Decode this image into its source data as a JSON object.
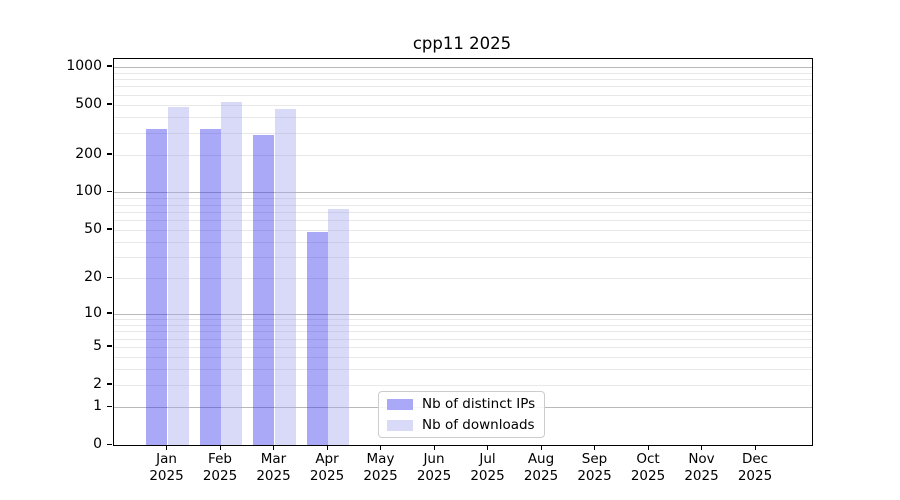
{
  "chart_data": {
    "type": "bar",
    "title": "cpp11 2025",
    "categories": [
      {
        "month": "Jan",
        "year": "2025"
      },
      {
        "month": "Feb",
        "year": "2025"
      },
      {
        "month": "Mar",
        "year": "2025"
      },
      {
        "month": "Apr",
        "year": "2025"
      },
      {
        "month": "May",
        "year": "2025"
      },
      {
        "month": "Jun",
        "year": "2025"
      },
      {
        "month": "Jul",
        "year": "2025"
      },
      {
        "month": "Aug",
        "year": "2025"
      },
      {
        "month": "Sep",
        "year": "2025"
      },
      {
        "month": "Oct",
        "year": "2025"
      },
      {
        "month": "Nov",
        "year": "2025"
      },
      {
        "month": "Dec",
        "year": "2025"
      }
    ],
    "series": [
      {
        "name": "Nb of distinct IPs",
        "color": "#a9a9f7",
        "color_rgba": "rgba(40,40,235,0.4)",
        "values": [
          320,
          322,
          285,
          48,
          null,
          null,
          null,
          null,
          null,
          null,
          null,
          null
        ]
      },
      {
        "name": "Nb of downloads",
        "color": "#d9d9f8",
        "color_rgba": "rgba(160,160,238,0.4)",
        "values": [
          480,
          525,
          465,
          73,
          null,
          null,
          null,
          null,
          null,
          null,
          null,
          null
        ]
      }
    ],
    "y_axis": {
      "scale": "log10(value+1)",
      "tick_labels": [
        "1000",
        "500",
        "200",
        "100",
        "50",
        "20",
        "10",
        "5",
        "2",
        "1",
        "0"
      ],
      "ylim": [
        0,
        1157
      ]
    },
    "x_axis": {
      "tick_style": "month above year, centered under each bar pair"
    },
    "grid": {
      "horizontal": true,
      "vertical": false,
      "major_color": "#b9b9b9",
      "minor_color": "#e8e8e8",
      "major_values": [
        1,
        10,
        100,
        1000
      ],
      "minor_values": [
        2,
        3,
        4,
        5,
        6,
        7,
        8,
        9,
        20,
        30,
        40,
        50,
        60,
        70,
        80,
        90,
        200,
        300,
        400,
        500,
        600,
        700,
        800,
        900
      ]
    },
    "legend": {
      "position": "lower center-left, inside axes"
    }
  }
}
